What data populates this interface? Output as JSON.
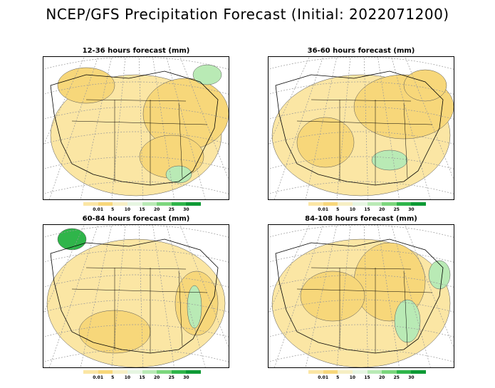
{
  "title": "NCEP/GFS Precipitation Forecast (Initial: 2022071200)",
  "colorbar": {
    "labels": [
      "0.01",
      "5",
      "10",
      "15",
      "20",
      "25",
      "30"
    ],
    "colors": [
      "#fbe6a4",
      "#f7d77a",
      "#f6efc4",
      "#e6f5e1",
      "#b9eab5",
      "#7cd67d",
      "#2fb54a",
      "#0e9a35"
    ]
  },
  "panels": [
    {
      "title": "12-36 hours forecast (mm)"
    },
    {
      "title": "36-60 hours forecast (mm)"
    },
    {
      "title": "60-84 hours forecast (mm)"
    },
    {
      "title": "84-108 hours forecast (mm)"
    }
  ]
}
